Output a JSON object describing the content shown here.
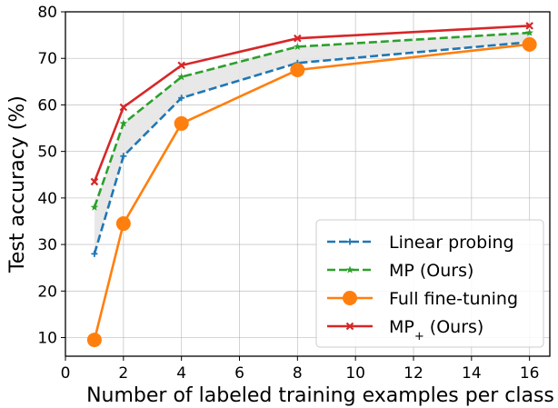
{
  "chart_data": {
    "type": "line",
    "xlabel": "Number of labeled training examples per class",
    "ylabel": "Test accuracy (%)",
    "xlim": [
      0,
      16.7
    ],
    "ylim": [
      6,
      80
    ],
    "xticks": [
      0,
      2,
      4,
      6,
      8,
      10,
      12,
      14,
      16
    ],
    "yticks": [
      10,
      20,
      30,
      40,
      50,
      60,
      70,
      80
    ],
    "grid": true,
    "legend_position": "lower-right",
    "shaded_band": {
      "between": [
        "Linear probing",
        "MP (Ours)"
      ],
      "color": "#e6e6e6"
    },
    "x": [
      1,
      2,
      4,
      8,
      16
    ],
    "series": [
      {
        "name": "Linear probing",
        "values": [
          28.0,
          49.0,
          61.5,
          69.0,
          73.5
        ],
        "color": "#1f77b4",
        "dash": "dashed",
        "marker": "plus"
      },
      {
        "name": "MP (Ours)",
        "values": [
          38.0,
          56.0,
          66.0,
          72.5,
          75.5
        ],
        "color": "#2ca02c",
        "dash": "dashed",
        "marker": "star"
      },
      {
        "name": "Full fine-tuning",
        "values": [
          9.5,
          34.5,
          56.0,
          67.5,
          73.0
        ],
        "color": "#ff7f0e",
        "dash": "solid",
        "marker": "circle"
      },
      {
        "name": "MP",
        "name_subscript": "+",
        "name_suffix": " (Ours)",
        "values": [
          43.5,
          59.5,
          68.5,
          74.3,
          77.0
        ],
        "color": "#d62728",
        "dash": "solid",
        "marker": "x"
      }
    ]
  }
}
